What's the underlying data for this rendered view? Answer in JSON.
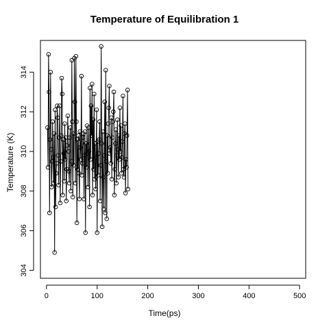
{
  "chart_data": {
    "type": "line",
    "title": "Temperature of Equilibration 1",
    "xlabel": "Time(ps)",
    "ylabel": "Temperature (K)",
    "xlim": [
      -12,
      512
    ],
    "ylim": [
      303.6,
      315.6
    ],
    "x_ticks": [
      0,
      100,
      200,
      300,
      400,
      500
    ],
    "y_ticks": [
      304,
      306,
      308,
      310,
      312,
      314
    ],
    "x_tick_labels": [
      "0",
      "100",
      "200",
      "300",
      "400",
      "500"
    ],
    "y_tick_labels": [
      "304",
      "306",
      "308",
      "310",
      "312",
      "314"
    ],
    "grid": false,
    "marker": "open-circle",
    "line_color": "#000000",
    "series": [
      {
        "x_start": 2,
        "x_step": 1,
        "values": [
          311.2,
          309.2,
          314.9,
          313.0,
          306.9,
          310.6,
          314.0,
          310.1,
          308.2,
          309.5,
          311.5,
          309.7,
          308.4,
          310.9,
          304.9,
          312.1,
          307.2,
          308.9,
          309.4,
          312.3,
          311.7,
          309.8,
          308.3,
          310.7,
          312.3,
          307.4,
          309.5,
          310.8,
          313.7,
          312.9,
          307.8,
          310.6,
          309.9,
          308.5,
          311.4,
          309.6,
          310.7,
          307.5,
          309.1,
          310.3,
          311.8,
          310.0,
          309.0,
          308.4,
          310.7,
          311.2,
          308.0,
          309.5,
          314.6,
          311.5,
          307.7,
          310.9,
          309.3,
          314.7,
          312.5,
          308.4,
          314.8,
          311.5,
          306.4,
          310.6,
          309.1,
          310.8,
          308.9,
          307.6,
          311.0,
          310.2,
          309.6,
          313.8,
          308.8,
          309.4,
          310.7,
          310.9,
          307.6,
          309.8,
          311.0,
          305.9,
          310.4,
          309.2,
          311.3,
          309.9,
          308.2,
          311.2,
          310.0,
          307.2,
          313.2,
          309.6,
          312.3,
          310.8,
          313.4,
          307.8,
          311.6,
          309.1,
          312.9,
          308.6,
          310.4,
          308.1,
          309.7,
          312.1,
          305.9,
          310.5,
          308.8,
          309.9,
          310.6,
          311.5,
          307.5,
          309.3,
          315.3,
          310.4,
          306.2,
          311.0,
          308.7,
          307.1,
          309.8,
          312.5,
          306.9,
          314.1,
          309.5,
          306.6,
          310.8,
          308.9,
          311.4,
          312.2,
          313.3,
          309.9,
          310.2,
          309.4,
          311.7,
          308.6,
          310.7,
          311.5,
          312.0,
          313.0,
          307.8,
          309.1,
          310.4,
          311.1,
          308.4,
          309.8,
          311.6,
          310.1,
          308.7,
          310.8,
          309.6,
          312.2,
          310.0,
          311.3,
          308.9,
          309.7,
          310.5,
          312.8,
          309.1,
          308.7,
          310.9,
          311.4,
          307.9,
          309.6,
          309.2,
          310.8,
          313.1,
          308.1
        ]
      }
    ]
  }
}
